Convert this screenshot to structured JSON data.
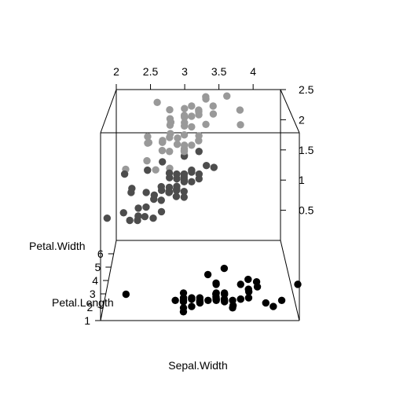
{
  "chart_data": {
    "type": "scatter3d",
    "title": "",
    "xlabel": "Sepal.Width",
    "ylabel": "Petal.Length",
    "zlabel": "Petal.Width",
    "xlim": [
      2,
      4.4
    ],
    "ylim": [
      1,
      7
    ],
    "zlim": [
      0,
      2.5
    ],
    "x_ticks": [
      "2",
      "2.5",
      "3",
      "3.5",
      "4"
    ],
    "y_ticks": [
      "1",
      "2",
      "3",
      "4",
      "5",
      "6"
    ],
    "z_ticks": [
      "0.5",
      "1",
      "1.5",
      "2",
      "2.5"
    ],
    "box": true,
    "grid": false,
    "legend": "none",
    "series": [
      {
        "color": "#000000",
        "points": [
          [
            3.5,
            1.4,
            0.2
          ],
          [
            3.0,
            1.4,
            0.2
          ],
          [
            3.2,
            1.3,
            0.2
          ],
          [
            3.1,
            1.5,
            0.2
          ],
          [
            3.6,
            1.4,
            0.2
          ],
          [
            3.9,
            1.7,
            0.4
          ],
          [
            3.4,
            1.4,
            0.3
          ],
          [
            3.4,
            1.5,
            0.2
          ],
          [
            2.9,
            1.4,
            0.2
          ],
          [
            3.1,
            1.5,
            0.1
          ],
          [
            3.7,
            1.5,
            0.2
          ],
          [
            3.4,
            1.6,
            0.2
          ],
          [
            3.0,
            1.4,
            0.1
          ],
          [
            3.0,
            1.1,
            0.1
          ],
          [
            4.0,
            1.2,
            0.2
          ],
          [
            4.4,
            1.5,
            0.4
          ],
          [
            3.9,
            1.3,
            0.4
          ],
          [
            3.5,
            1.4,
            0.3
          ],
          [
            3.8,
            1.7,
            0.3
          ],
          [
            3.8,
            1.5,
            0.3
          ],
          [
            3.4,
            1.7,
            0.2
          ],
          [
            3.7,
            1.5,
            0.4
          ],
          [
            3.6,
            1.0,
            0.2
          ],
          [
            3.3,
            1.7,
            0.5
          ],
          [
            3.4,
            1.9,
            0.2
          ],
          [
            3.0,
            1.6,
            0.2
          ],
          [
            3.4,
            1.6,
            0.4
          ],
          [
            3.5,
            1.5,
            0.2
          ],
          [
            3.4,
            1.4,
            0.2
          ],
          [
            3.2,
            1.6,
            0.2
          ],
          [
            3.1,
            1.6,
            0.2
          ],
          [
            3.4,
            1.5,
            0.4
          ],
          [
            4.1,
            1.5,
            0.1
          ],
          [
            4.2,
            1.4,
            0.2
          ],
          [
            3.1,
            1.5,
            0.2
          ],
          [
            3.2,
            1.2,
            0.2
          ],
          [
            3.5,
            1.3,
            0.2
          ],
          [
            3.6,
            1.4,
            0.1
          ],
          [
            3.0,
            1.3,
            0.2
          ],
          [
            3.4,
            1.5,
            0.2
          ],
          [
            3.5,
            1.3,
            0.3
          ],
          [
            2.3,
            1.3,
            0.3
          ],
          [
            3.2,
            1.3,
            0.2
          ],
          [
            3.5,
            1.6,
            0.6
          ],
          [
            3.8,
            1.9,
            0.4
          ],
          [
            3.0,
            1.4,
            0.3
          ],
          [
            3.8,
            1.6,
            0.2
          ],
          [
            3.2,
            1.4,
            0.2
          ],
          [
            3.7,
            1.5,
            0.2
          ],
          [
            3.3,
            1.4,
            0.2
          ]
        ]
      },
      {
        "color": "#4d4d4d",
        "points": [
          [
            3.2,
            4.7,
            1.4
          ],
          [
            3.2,
            4.5,
            1.5
          ],
          [
            3.1,
            4.9,
            1.5
          ],
          [
            2.3,
            4.0,
            1.3
          ],
          [
            2.8,
            4.6,
            1.5
          ],
          [
            2.8,
            4.5,
            1.3
          ],
          [
            3.3,
            4.7,
            1.6
          ],
          [
            2.4,
            3.3,
            1.0
          ],
          [
            2.9,
            4.6,
            1.3
          ],
          [
            2.7,
            3.9,
            1.4
          ],
          [
            2.0,
            3.5,
            1.0
          ],
          [
            3.0,
            4.2,
            1.5
          ],
          [
            2.2,
            4.0,
            1.0
          ],
          [
            2.9,
            4.7,
            1.4
          ],
          [
            2.9,
            3.6,
            1.3
          ],
          [
            3.1,
            4.4,
            1.4
          ],
          [
            3.0,
            4.5,
            1.5
          ],
          [
            2.7,
            4.1,
            1.0
          ],
          [
            2.2,
            4.5,
            1.5
          ],
          [
            2.5,
            3.9,
            1.1
          ],
          [
            3.2,
            4.8,
            1.8
          ],
          [
            2.8,
            4.0,
            1.3
          ],
          [
            2.5,
            4.9,
            1.5
          ],
          [
            2.8,
            4.7,
            1.2
          ],
          [
            2.9,
            4.3,
            1.3
          ],
          [
            3.0,
            4.4,
            1.4
          ],
          [
            2.8,
            4.8,
            1.4
          ],
          [
            3.0,
            5.0,
            1.7
          ],
          [
            2.9,
            4.5,
            1.5
          ],
          [
            2.6,
            3.5,
            1.0
          ],
          [
            2.4,
            3.8,
            1.1
          ],
          [
            2.4,
            3.7,
            1.0
          ],
          [
            2.7,
            3.9,
            1.2
          ],
          [
            2.7,
            5.1,
            1.6
          ],
          [
            3.0,
            4.5,
            1.5
          ],
          [
            3.4,
            4.5,
            1.6
          ],
          [
            3.1,
            4.7,
            1.5
          ],
          [
            2.3,
            4.4,
            1.3
          ],
          [
            3.0,
            4.1,
            1.3
          ],
          [
            2.5,
            4.0,
            1.3
          ],
          [
            2.6,
            4.4,
            1.2
          ],
          [
            3.0,
            4.6,
            1.4
          ],
          [
            2.6,
            4.0,
            1.2
          ],
          [
            2.3,
            3.3,
            1.0
          ],
          [
            2.7,
            4.2,
            1.3
          ],
          [
            3.0,
            4.2,
            1.2
          ],
          [
            2.9,
            4.2,
            1.3
          ],
          [
            2.9,
            4.3,
            1.3
          ],
          [
            2.5,
            3.0,
            1.1
          ],
          [
            2.8,
            4.1,
            1.3
          ]
        ]
      },
      {
        "color": "#999999",
        "points": [
          [
            3.3,
            6.0,
            2.5
          ],
          [
            2.7,
            5.1,
            1.9
          ],
          [
            3.0,
            5.9,
            2.1
          ],
          [
            2.9,
            5.6,
            1.8
          ],
          [
            3.0,
            5.8,
            2.2
          ],
          [
            3.0,
            6.6,
            2.1
          ],
          [
            2.5,
            4.5,
            1.7
          ],
          [
            2.9,
            6.3,
            1.8
          ],
          [
            2.5,
            5.8,
            1.8
          ],
          [
            3.6,
            6.1,
            2.5
          ],
          [
            3.2,
            5.1,
            2.0
          ],
          [
            2.7,
            5.3,
            1.9
          ],
          [
            3.0,
            5.5,
            2.1
          ],
          [
            2.5,
            5.0,
            2.0
          ],
          [
            2.8,
            5.1,
            2.4
          ],
          [
            3.2,
            5.3,
            2.3
          ],
          [
            3.0,
            5.5,
            1.8
          ],
          [
            3.8,
            6.7,
            2.2
          ],
          [
            2.6,
            6.9,
            2.3
          ],
          [
            2.2,
            5.0,
            1.5
          ],
          [
            3.2,
            5.7,
            2.3
          ],
          [
            2.8,
            4.9,
            2.0
          ],
          [
            2.8,
            6.7,
            2.0
          ],
          [
            2.7,
            4.9,
            1.8
          ],
          [
            3.3,
            5.7,
            2.1
          ],
          [
            3.2,
            6.0,
            1.8
          ],
          [
            2.8,
            4.8,
            1.8
          ],
          [
            3.0,
            4.9,
            1.8
          ],
          [
            2.8,
            5.6,
            2.1
          ],
          [
            3.0,
            5.8,
            1.6
          ],
          [
            2.8,
            6.1,
            1.9
          ],
          [
            3.8,
            6.4,
            2.0
          ],
          [
            2.8,
            5.6,
            2.2
          ],
          [
            2.8,
            5.1,
            1.5
          ],
          [
            2.6,
            5.6,
            1.4
          ],
          [
            3.0,
            6.1,
            2.3
          ],
          [
            3.4,
            5.6,
            2.4
          ],
          [
            3.1,
            5.5,
            1.8
          ],
          [
            3.0,
            4.8,
            1.8
          ],
          [
            3.1,
            5.4,
            2.1
          ],
          [
            3.1,
            5.6,
            2.4
          ],
          [
            3.1,
            5.1,
            2.3
          ],
          [
            2.7,
            5.1,
            1.9
          ],
          [
            3.2,
            5.9,
            2.3
          ],
          [
            3.3,
            5.7,
            2.5
          ],
          [
            3.0,
            5.2,
            2.3
          ],
          [
            2.5,
            5.0,
            1.9
          ],
          [
            3.0,
            5.2,
            2.0
          ],
          [
            3.4,
            5.4,
            2.3
          ],
          [
            3.0,
            5.1,
            1.8
          ]
        ]
      }
    ]
  }
}
